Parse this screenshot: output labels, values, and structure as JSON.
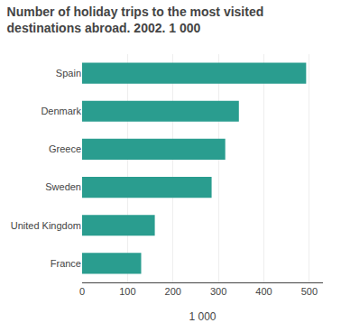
{
  "chart_data": {
    "type": "bar",
    "orientation": "horizontal",
    "title": "Number of holiday trips to the most visited\ndestinations abroad. 2002. 1 000",
    "categories": [
      "Spain",
      "Denmark",
      "Greece",
      "Sweden",
      "United Kingdom",
      "France"
    ],
    "values": [
      493,
      345,
      315,
      285,
      160,
      130
    ],
    "color": "#2a9d8f",
    "xlabel": "1 000",
    "xlim": [
      0,
      530
    ],
    "xticks": [
      0,
      100,
      200,
      300,
      400,
      500
    ],
    "grid": true
  }
}
